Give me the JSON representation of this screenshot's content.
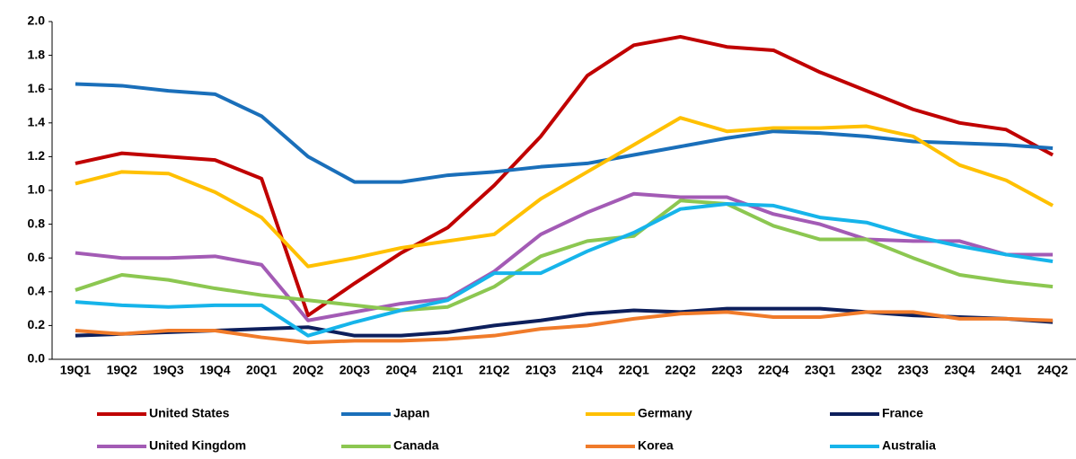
{
  "chart_data": {
    "type": "line",
    "categories": [
      "19Q1",
      "19Q2",
      "19Q3",
      "19Q4",
      "20Q1",
      "20Q2",
      "20Q3",
      "20Q4",
      "21Q1",
      "21Q2",
      "21Q3",
      "21Q4",
      "22Q1",
      "22Q2",
      "22Q3",
      "22Q4",
      "23Q1",
      "23Q2",
      "23Q3",
      "23Q4",
      "24Q1",
      "24Q2"
    ],
    "ylim": [
      0,
      2.0
    ],
    "yticks": [
      {
        "value": 0,
        "label": "0.0"
      },
      0.2,
      0.4,
      0.6,
      0.8,
      {
        "value": 1,
        "label": "1.0"
      },
      1.2,
      1.4,
      1.6,
      1.8,
      {
        "value": 2,
        "label": "2.0"
      }
    ],
    "grid": false,
    "series": [
      {
        "name": "United States",
        "color": "#c00000",
        "values": [
          1.16,
          1.22,
          1.2,
          1.18,
          1.07,
          0.26,
          0.45,
          0.63,
          0.78,
          1.03,
          1.32,
          1.68,
          1.86,
          1.91,
          1.85,
          1.83,
          1.7,
          1.59,
          1.48,
          1.4,
          1.36,
          1.21
        ]
      },
      {
        "name": "Japan",
        "color": "#1a6fba",
        "values": [
          1.63,
          1.62,
          1.59,
          1.57,
          1.44,
          1.2,
          1.05,
          1.05,
          1.09,
          1.11,
          1.14,
          1.16,
          1.21,
          1.26,
          1.31,
          1.35,
          1.34,
          1.32,
          1.29,
          1.28,
          1.27,
          1.25
        ]
      },
      {
        "name": "Germany",
        "color": "#ffc000",
        "values": [
          1.04,
          1.11,
          1.1,
          0.99,
          0.84,
          0.55,
          0.6,
          0.66,
          0.7,
          0.74,
          0.95,
          1.11,
          1.27,
          1.43,
          1.35,
          1.37,
          1.37,
          1.38,
          1.32,
          1.15,
          1.06,
          0.91
        ]
      },
      {
        "name": "France",
        "color": "#0d1f5c",
        "values": [
          0.14,
          0.15,
          0.16,
          0.17,
          0.18,
          0.19,
          0.14,
          0.14,
          0.16,
          0.2,
          0.23,
          0.27,
          0.29,
          0.28,
          0.3,
          0.3,
          0.3,
          0.28,
          0.26,
          0.25,
          0.24,
          0.22
        ]
      },
      {
        "name": "United Kingdom",
        "color": "#a35bb5",
        "values": [
          0.63,
          0.6,
          0.6,
          0.61,
          0.56,
          0.23,
          0.28,
          0.33,
          0.36,
          0.52,
          0.74,
          0.87,
          0.98,
          0.96,
          0.96,
          0.86,
          0.8,
          0.71,
          0.7,
          0.7,
          0.62,
          0.62
        ]
      },
      {
        "name": "Canada",
        "color": "#8cc751",
        "values": [
          0.41,
          0.5,
          0.47,
          0.42,
          0.38,
          0.35,
          0.32,
          0.29,
          0.31,
          0.43,
          0.61,
          0.7,
          0.73,
          0.94,
          0.92,
          0.79,
          0.71,
          0.71,
          0.6,
          0.5,
          0.46,
          0.43
        ]
      },
      {
        "name": "Korea",
        "color": "#f07b2a",
        "values": [
          0.17,
          0.15,
          0.17,
          0.17,
          0.13,
          0.1,
          0.11,
          0.11,
          0.12,
          0.14,
          0.18,
          0.2,
          0.24,
          0.27,
          0.28,
          0.25,
          0.25,
          0.28,
          0.28,
          0.24,
          0.24,
          0.23
        ]
      },
      {
        "name": "Australia",
        "color": "#16b4ea",
        "values": [
          0.34,
          0.32,
          0.31,
          0.32,
          0.32,
          0.14,
          0.22,
          0.29,
          0.35,
          0.51,
          0.51,
          0.64,
          0.75,
          0.89,
          0.92,
          0.91,
          0.84,
          0.81,
          0.73,
          0.67,
          0.62,
          0.58
        ]
      }
    ]
  }
}
